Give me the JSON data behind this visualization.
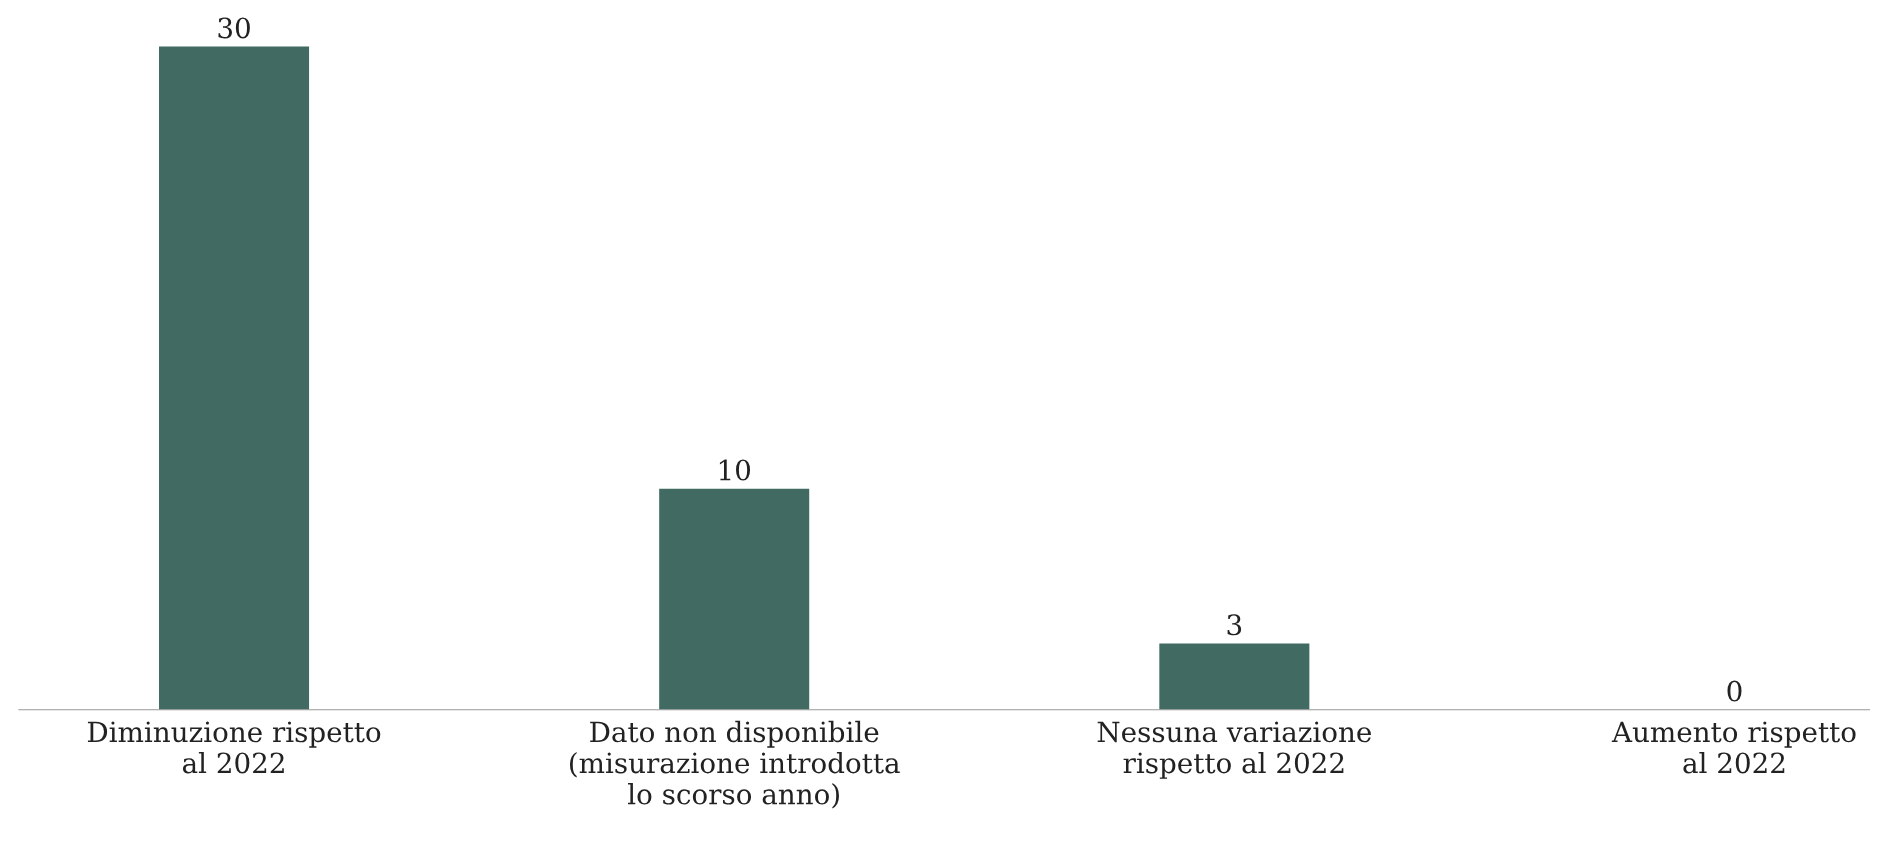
{
  "chart_data": {
    "type": "bar",
    "categories": [
      "Diminuzione rispetto\nal 2022",
      "Dato non disponibile\n(misurazione introdotta\nlo scorso anno)",
      "Nessuna variazione\nrispetto al 2022",
      "Aumento rispetto\nal 2022"
    ],
    "values": [
      30,
      10,
      3,
      0
    ],
    "color": "#416b62",
    "data_labels": true,
    "grid": false,
    "legend": false
  }
}
